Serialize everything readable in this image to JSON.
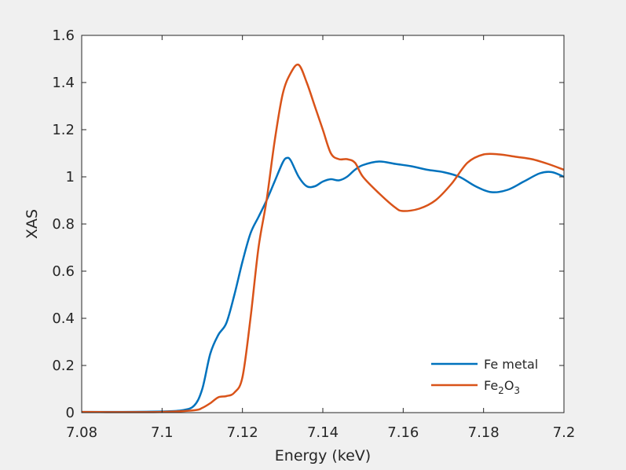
{
  "chart_data": {
    "type": "line",
    "title": "",
    "xlabel": "Energy (keV)",
    "ylabel": "XAS",
    "xlim": [
      7.08,
      7.2
    ],
    "ylim": [
      0,
      1.6
    ],
    "xticks": [
      7.08,
      7.1,
      7.12,
      7.14,
      7.16,
      7.18,
      7.2
    ],
    "xtick_labels": [
      "7.08",
      "7.1",
      "7.12",
      "7.14",
      "7.16",
      "7.18",
      "7.2"
    ],
    "yticks": [
      0,
      0.2,
      0.4,
      0.6,
      0.8,
      1.0,
      1.2,
      1.4,
      1.6
    ],
    "ytick_labels": [
      "0",
      "0.2",
      "0.4",
      "0.6",
      "0.8",
      "1",
      "1.2",
      "1.4",
      "1.6"
    ],
    "grid": false,
    "legend_position": "bottom-right",
    "series": [
      {
        "name": "Fe metal",
        "color": "#0072BD",
        "points": [
          [
            7.08,
            0.003
          ],
          [
            7.09,
            0.003
          ],
          [
            7.1,
            0.005
          ],
          [
            7.105,
            0.01
          ],
          [
            7.108,
            0.03
          ],
          [
            7.11,
            0.1
          ],
          [
            7.112,
            0.25
          ],
          [
            7.114,
            0.33
          ],
          [
            7.116,
            0.38
          ],
          [
            7.118,
            0.5
          ],
          [
            7.12,
            0.64
          ],
          [
            7.122,
            0.76
          ],
          [
            7.124,
            0.83
          ],
          [
            7.126,
            0.9
          ],
          [
            7.128,
            0.98
          ],
          [
            7.13,
            1.06
          ],
          [
            7.131,
            1.08
          ],
          [
            7.132,
            1.07
          ],
          [
            7.134,
            1.0
          ],
          [
            7.136,
            0.96
          ],
          [
            7.138,
            0.96
          ],
          [
            7.14,
            0.98
          ],
          [
            7.142,
            0.99
          ],
          [
            7.144,
            0.985
          ],
          [
            7.146,
            1.0
          ],
          [
            7.148,
            1.03
          ],
          [
            7.15,
            1.05
          ],
          [
            7.154,
            1.065
          ],
          [
            7.158,
            1.055
          ],
          [
            7.162,
            1.045
          ],
          [
            7.166,
            1.03
          ],
          [
            7.17,
            1.02
          ],
          [
            7.174,
            1.0
          ],
          [
            7.178,
            0.96
          ],
          [
            7.182,
            0.935
          ],
          [
            7.186,
            0.945
          ],
          [
            7.19,
            0.98
          ],
          [
            7.194,
            1.015
          ],
          [
            7.197,
            1.02
          ],
          [
            7.2,
            1.0
          ]
        ]
      },
      {
        "name": "Fe2O3",
        "name_base": "Fe",
        "name_sub1": "2",
        "name_mid": "O",
        "name_sub2": "3",
        "color": "#D95319",
        "points": [
          [
            7.08,
            0.003
          ],
          [
            7.09,
            0.002
          ],
          [
            7.1,
            0.003
          ],
          [
            7.108,
            0.01
          ],
          [
            7.11,
            0.02
          ],
          [
            7.112,
            0.04
          ],
          [
            7.114,
            0.065
          ],
          [
            7.116,
            0.07
          ],
          [
            7.118,
            0.085
          ],
          [
            7.12,
            0.15
          ],
          [
            7.122,
            0.4
          ],
          [
            7.124,
            0.7
          ],
          [
            7.126,
            0.9
          ],
          [
            7.128,
            1.15
          ],
          [
            7.13,
            1.35
          ],
          [
            7.132,
            1.44
          ],
          [
            7.134,
            1.475
          ],
          [
            7.136,
            1.4
          ],
          [
            7.138,
            1.3
          ],
          [
            7.14,
            1.2
          ],
          [
            7.142,
            1.1
          ],
          [
            7.144,
            1.075
          ],
          [
            7.146,
            1.075
          ],
          [
            7.148,
            1.06
          ],
          [
            7.15,
            1.0
          ],
          [
            7.154,
            0.93
          ],
          [
            7.158,
            0.87
          ],
          [
            7.16,
            0.855
          ],
          [
            7.164,
            0.865
          ],
          [
            7.168,
            0.9
          ],
          [
            7.172,
            0.97
          ],
          [
            7.176,
            1.06
          ],
          [
            7.18,
            1.095
          ],
          [
            7.184,
            1.095
          ],
          [
            7.188,
            1.085
          ],
          [
            7.192,
            1.075
          ],
          [
            7.196,
            1.055
          ],
          [
            7.2,
            1.03
          ]
        ]
      }
    ]
  }
}
